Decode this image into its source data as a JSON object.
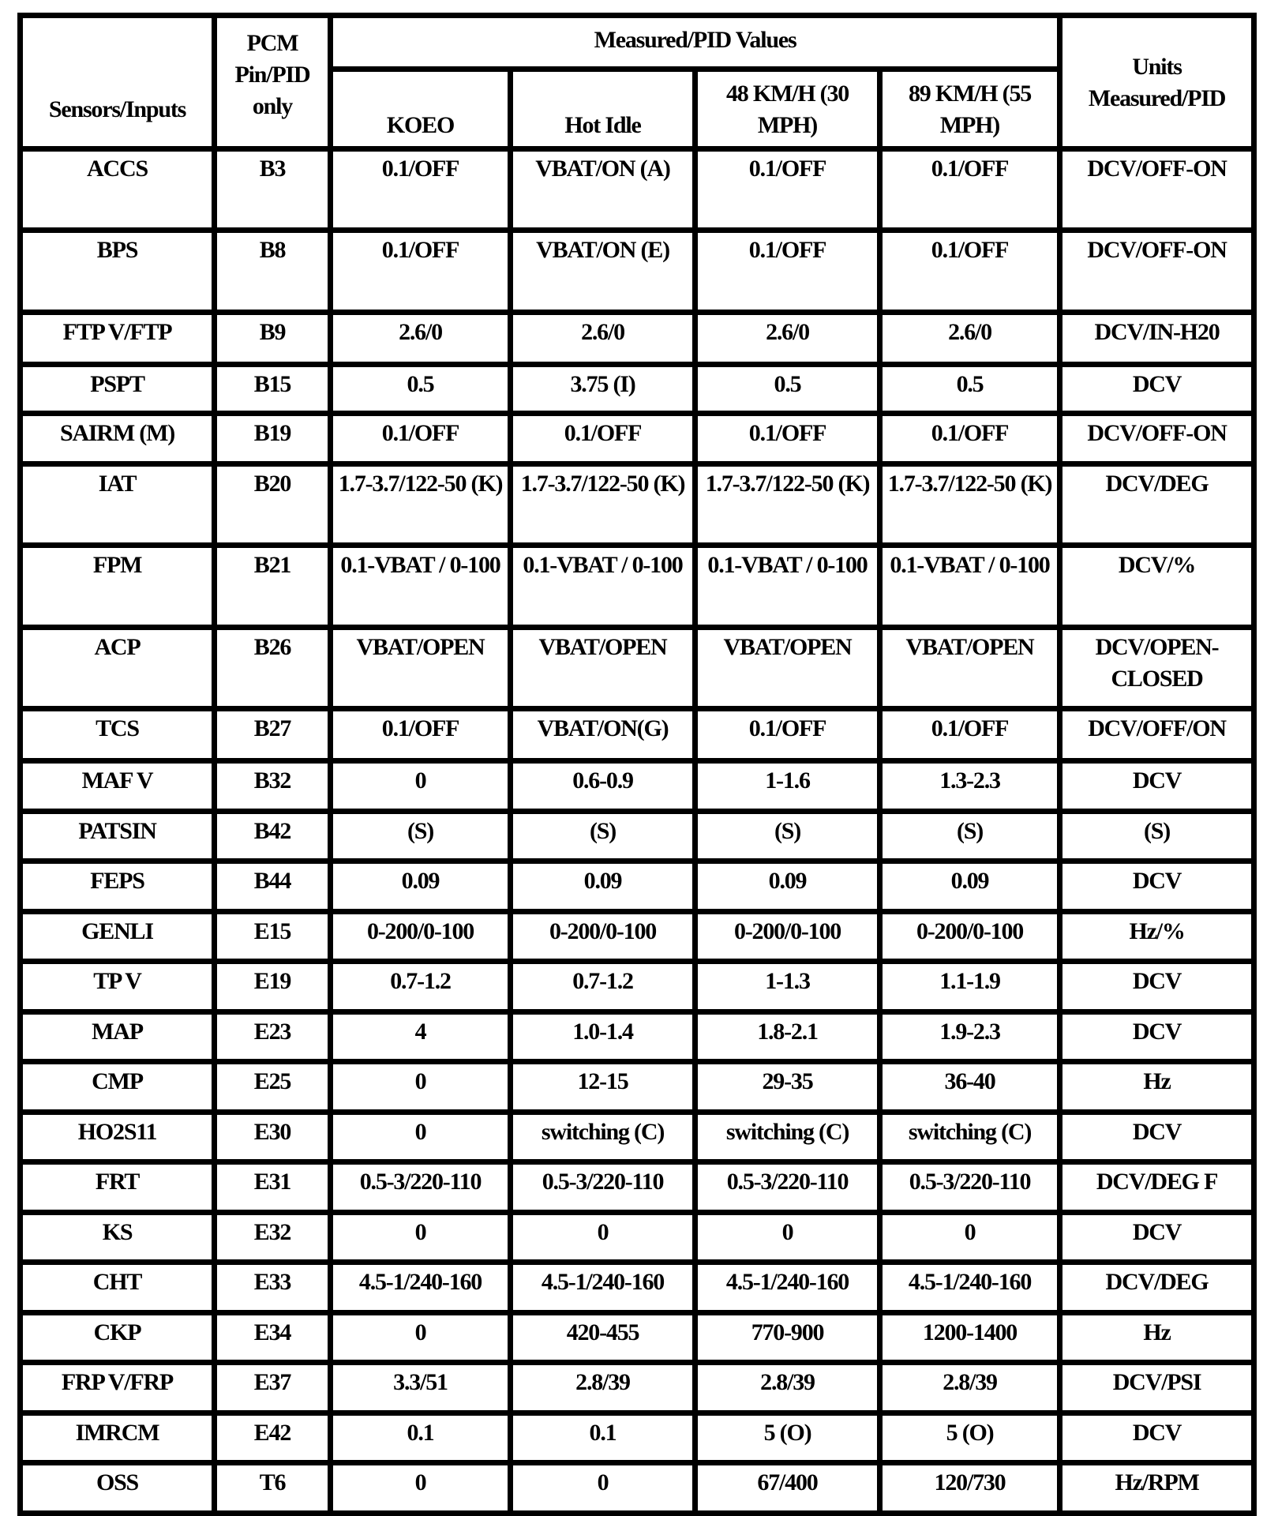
{
  "header": {
    "sensors": "Sensors/Inputs",
    "pin": "PCM Pin/PID only",
    "measured": "Measured/PID Values",
    "units": "Units Measured/PID",
    "koeo": "KOEO",
    "hot_idle": "Hot Idle",
    "kmh48": "48 KM/H (30 MPH)",
    "kmh89": "89 KM/H (55 MPH)"
  },
  "rows": [
    {
      "sensor": "ACCS",
      "pin": "B3",
      "koeo": "0.1/OFF",
      "hot_idle": "VBAT/ON (A)",
      "kmh48": "0.1/OFF",
      "kmh89": "0.1/OFF",
      "units": "DCV/OFF-ON"
    },
    {
      "sensor": "BPS",
      "pin": "B8",
      "koeo": "0.1/OFF",
      "hot_idle": "VBAT/ON (E)",
      "kmh48": "0.1/OFF",
      "kmh89": "0.1/OFF",
      "units": "DCV/OFF-ON"
    },
    {
      "sensor": "FTP V/FTP",
      "pin": "B9",
      "koeo": "2.6/0",
      "hot_idle": "2.6/0",
      "kmh48": "2.6/0",
      "kmh89": "2.6/0",
      "units": "DCV/IN-H20"
    },
    {
      "sensor": "PSPT",
      "pin": "B15",
      "koeo": "0.5",
      "hot_idle": "3.75 (I)",
      "kmh48": "0.5",
      "kmh89": "0.5",
      "units": "DCV"
    },
    {
      "sensor": "SAIRM (M)",
      "pin": "B19",
      "koeo": "0.1/OFF",
      "hot_idle": "0.1/OFF",
      "kmh48": "0.1/OFF",
      "kmh89": "0.1/OFF",
      "units": "DCV/OFF-ON"
    },
    {
      "sensor": "IAT",
      "pin": "B20",
      "koeo": "1.7-3.7/122-50 (K)",
      "hot_idle": "1.7-3.7/122-50 (K)",
      "kmh48": "1.7-3.7/122-50 (K)",
      "kmh89": "1.7-3.7/122-50 (K)",
      "units": "DCV/DEG"
    },
    {
      "sensor": "FPM",
      "pin": "B21",
      "koeo": "0.1-VBAT / 0-100",
      "hot_idle": "0.1-VBAT / 0-100",
      "kmh48": "0.1-VBAT / 0-100",
      "kmh89": "0.1-VBAT / 0-100",
      "units": "DCV/%"
    },
    {
      "sensor": "ACP",
      "pin": "B26",
      "koeo": "VBAT/OPEN",
      "hot_idle": "VBAT/OPEN",
      "kmh48": "VBAT/OPEN",
      "kmh89": "VBAT/OPEN",
      "units": "DCV/OPEN-CLOSED"
    },
    {
      "sensor": "TCS",
      "pin": "B27",
      "koeo": "0.1/OFF",
      "hot_idle": "VBAT/ON(G)",
      "kmh48": "0.1/OFF",
      "kmh89": "0.1/OFF",
      "units": "DCV/OFF/ON"
    },
    {
      "sensor": "MAF V",
      "pin": "B32",
      "koeo": "0",
      "hot_idle": "0.6-0.9",
      "kmh48": "1-1.6",
      "kmh89": "1.3-2.3",
      "units": "DCV"
    },
    {
      "sensor": "PATSIN",
      "pin": "B42",
      "koeo": "(S)",
      "hot_idle": "(S)",
      "kmh48": "(S)",
      "kmh89": "(S)",
      "units": "(S)"
    },
    {
      "sensor": "FEPS",
      "pin": "B44",
      "koeo": "0.09",
      "hot_idle": "0.09",
      "kmh48": "0.09",
      "kmh89": "0.09",
      "units": "DCV"
    },
    {
      "sensor": "GENLI",
      "pin": "E15",
      "koeo": "0-200/0-100",
      "hot_idle": "0-200/0-100",
      "kmh48": "0-200/0-100",
      "kmh89": "0-200/0-100",
      "units": "Hz/%"
    },
    {
      "sensor": "TP V",
      "pin": "E19",
      "koeo": "0.7-1.2",
      "hot_idle": "0.7-1.2",
      "kmh48": "1-1.3",
      "kmh89": "1.1-1.9",
      "units": "DCV"
    },
    {
      "sensor": "MAP",
      "pin": "E23",
      "koeo": "4",
      "hot_idle": "1.0-1.4",
      "kmh48": "1.8-2.1",
      "kmh89": "1.9-2.3",
      "units": "DCV"
    },
    {
      "sensor": "CMP",
      "pin": "E25",
      "koeo": "0",
      "hot_idle": "12-15",
      "kmh48": "29-35",
      "kmh89": "36-40",
      "units": "Hz"
    },
    {
      "sensor": "HO2S11",
      "pin": "E30",
      "koeo": "0",
      "hot_idle": "switching (C)",
      "kmh48": "switching (C)",
      "kmh89": "switching (C)",
      "units": "DCV"
    },
    {
      "sensor": "FRT",
      "pin": "E31",
      "koeo": "0.5-3/220-110",
      "hot_idle": "0.5-3/220-110",
      "kmh48": "0.5-3/220-110",
      "kmh89": "0.5-3/220-110",
      "units": "DCV/DEG F"
    },
    {
      "sensor": "KS",
      "pin": "E32",
      "koeo": "0",
      "hot_idle": "0",
      "kmh48": "0",
      "kmh89": "0",
      "units": "DCV"
    },
    {
      "sensor": "CHT",
      "pin": "E33",
      "koeo": "4.5-1/240-160",
      "hot_idle": "4.5-1/240-160",
      "kmh48": "4.5-1/240-160",
      "kmh89": "4.5-1/240-160",
      "units": "DCV/DEG"
    },
    {
      "sensor": "CKP",
      "pin": "E34",
      "koeo": "0",
      "hot_idle": "420-455",
      "kmh48": "770-900",
      "kmh89": "1200-1400",
      "units": "Hz"
    },
    {
      "sensor": "FRP V/FRP",
      "pin": "E37",
      "koeo": "3.3/51",
      "hot_idle": "2.8/39",
      "kmh48": "2.8/39",
      "kmh89": "2.8/39",
      "units": "DCV/PSI"
    },
    {
      "sensor": "IMRCM",
      "pin": "E42",
      "koeo": "0.1",
      "hot_idle": "0.1",
      "kmh48": "5 (O)",
      "kmh89": "5 (O)",
      "units": "DCV"
    },
    {
      "sensor": "OSS",
      "pin": "T6",
      "koeo": "0",
      "hot_idle": "0",
      "kmh48": "67/400",
      "kmh89": "120/730",
      "units": "Hz/RPM"
    }
  ]
}
